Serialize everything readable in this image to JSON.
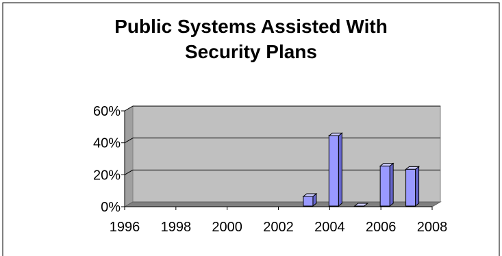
{
  "chart_data": {
    "type": "bar",
    "title_lines": [
      "Public Systems Assisted With",
      "Security Plans"
    ],
    "x_tick_labels": [
      "1996",
      "1998",
      "2000",
      "2002",
      "2004",
      "2006",
      "2008"
    ],
    "x": [
      2003,
      2004,
      2005,
      2006,
      2007
    ],
    "values": [
      6,
      44,
      0,
      25,
      23
    ],
    "value_unit": "%",
    "xlim": [
      1996,
      2008
    ],
    "ylim": [
      0,
      60
    ],
    "y_ticks": [
      0,
      20,
      40,
      60
    ],
    "y_tick_labels": [
      "0%",
      "20%",
      "40%",
      "60%"
    ],
    "xlabel": "",
    "ylabel": "",
    "grid": true,
    "legend": "none",
    "colors": {
      "bar_front": "#9999ff",
      "bar_side": "#6666cc",
      "bar_top": "#ccccff",
      "plot_wall": "#c0c0c0",
      "floor": "#808080"
    }
  }
}
